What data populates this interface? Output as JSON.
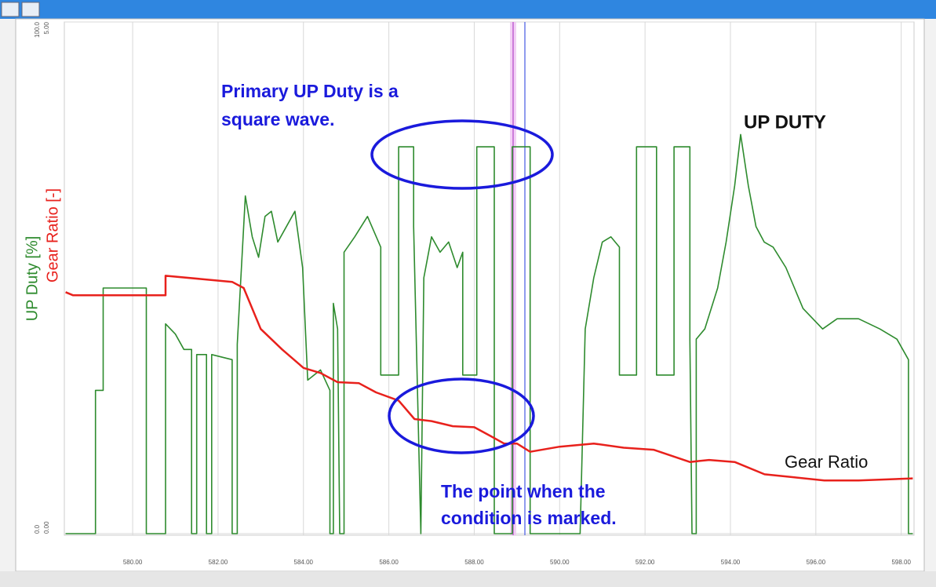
{
  "chart_data": {
    "type": "line",
    "y_label": "UP Duty [%]",
    "y2_label": "Gear Ratio [-]",
    "annotations": [
      "Primary UP Duty is a",
      "square wave.",
      "The point when the",
      "condition is marked."
    ],
    "xlim": [
      578.4,
      598.3
    ],
    "xticks": [
      {
        "value": 580,
        "label": "580.00"
      },
      {
        "value": 582,
        "label": "582.00"
      },
      {
        "value": 584,
        "label": "584.00"
      },
      {
        "value": 586,
        "label": "586.00"
      },
      {
        "value": 588,
        "label": "588.00"
      },
      {
        "value": 590,
        "label": "590.00"
      },
      {
        "value": 592,
        "label": "592.00"
      },
      {
        "value": 594,
        "label": "594.00"
      },
      {
        "value": 596,
        "label": "596.00"
      },
      {
        "value": 598,
        "label": "598.00"
      }
    ],
    "ylim": [
      0,
      100
    ],
    "yticks": [
      {
        "value": 0,
        "label": "0.0"
      },
      {
        "value": 100,
        "label": "100.0"
      }
    ],
    "y2lim": [
      0,
      5
    ],
    "y2ticks": [
      {
        "value": 0,
        "label": "0.00"
      },
      {
        "value": 5,
        "label": "5.00"
      }
    ],
    "grid": true,
    "series": [
      {
        "name": "UP DUTY",
        "color": "#2e8b2e",
        "x": [
          578.43,
          579.13,
          579.13,
          579.31,
          579.31,
          580.32,
          580.32,
          580.77,
          580.77,
          581.0,
          581.2,
          581.38,
          581.38,
          581.5,
          581.5,
          581.73,
          581.73,
          581.85,
          581.85,
          582.33,
          582.33,
          582.45,
          582.45,
          582.64,
          582.8,
          582.95,
          583.1,
          583.25,
          583.4,
          583.6,
          583.8,
          583.98,
          584.1,
          584.4,
          584.62,
          584.62,
          584.7,
          584.7,
          584.8,
          584.85,
          584.95,
          584.95,
          585.2,
          585.5,
          585.81,
          585.81,
          586.23,
          586.23,
          586.58,
          586.58,
          586.75,
          586.82,
          587.0,
          587.2,
          587.4,
          587.6,
          587.73,
          587.73,
          588.06,
          588.06,
          588.47,
          588.47,
          588.89,
          588.89,
          589.31,
          589.31,
          590.48,
          590.6,
          590.8,
          591.0,
          591.2,
          591.4,
          591.4,
          591.8,
          591.8,
          592.27,
          592.27,
          592.68,
          592.68,
          593.05,
          593.05,
          593.1,
          593.2,
          593.2,
          593.4,
          593.7,
          593.9,
          594.1,
          594.24,
          594.42,
          594.6,
          594.79,
          595.0,
          595.3,
          595.5,
          595.7,
          596.16,
          596.5,
          597.0,
          597.5,
          597.9,
          598.17,
          598.17,
          598.27
        ],
        "values": [
          0,
          0,
          28,
          28,
          48,
          48,
          0,
          0,
          41,
          39,
          36,
          36,
          0,
          0,
          35,
          35,
          0,
          0,
          35,
          34,
          0,
          0,
          37,
          66,
          58,
          54,
          62,
          63,
          57,
          60,
          63,
          52,
          30,
          32,
          28,
          0,
          0,
          45,
          40,
          0,
          0,
          55,
          58,
          62,
          56,
          31,
          31,
          75.6,
          75.6,
          60,
          0,
          50,
          58,
          55,
          57,
          52,
          55,
          31,
          31,
          75.6,
          75.6,
          0,
          0,
          75.6,
          75.6,
          0,
          0,
          40,
          50,
          57,
          58,
          56,
          31,
          31,
          75.6,
          75.6,
          31,
          31,
          75.6,
          75.6,
          38,
          0,
          0,
          38,
          40,
          48,
          57,
          68,
          78,
          68,
          60,
          57,
          56,
          52,
          48,
          44,
          40,
          42,
          42,
          40,
          38,
          34,
          0,
          0
        ]
      },
      {
        "name": "Gear Ratio",
        "color": "#e8211c",
        "axis": "y2",
        "x": [
          578.43,
          578.6,
          580.77,
          580.77,
          582.33,
          582.6,
          583.0,
          583.5,
          584.0,
          584.4,
          584.8,
          585.3,
          585.7,
          586.23,
          586.6,
          587.0,
          587.5,
          588.0,
          588.4,
          588.7,
          589.0,
          589.31,
          590.0,
          590.8,
          591.5,
          592.2,
          593.05,
          593.5,
          594.1,
          594.8,
          595.5,
          596.2,
          597.0,
          598.27
        ],
        "values": [
          2.36,
          2.33,
          2.33,
          2.52,
          2.46,
          2.4,
          2.0,
          1.8,
          1.62,
          1.57,
          1.48,
          1.47,
          1.38,
          1.3,
          1.12,
          1.1,
          1.05,
          1.04,
          0.95,
          0.88,
          0.88,
          0.8,
          0.85,
          0.88,
          0.84,
          0.82,
          0.7,
          0.72,
          0.7,
          0.58,
          0.55,
          0.52,
          0.52,
          0.54
        ]
      }
    ]
  }
}
